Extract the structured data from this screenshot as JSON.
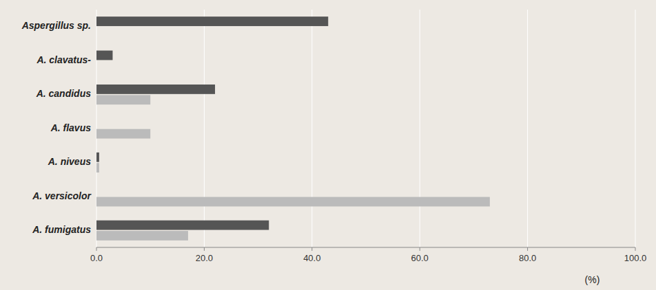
{
  "chart_data": {
    "type": "bar",
    "orientation": "horizontal",
    "categories": [
      "Aspergillus sp.",
      "A. clavatus-",
      "A. candidus",
      "A. flavus",
      "A. niveus",
      "A. versicolor",
      "A. fumigatus"
    ],
    "series": [
      {
        "color": "#555555",
        "values": [
          43.0,
          3.0,
          22.0,
          0.0,
          0.5,
          0.0,
          32.0
        ]
      },
      {
        "color": "#bbbbbb",
        "values": [
          0.0,
          0.0,
          10.0,
          10.0,
          0.5,
          73.0,
          17.0
        ]
      }
    ],
    "xlabel": "(%)",
    "xlim": [
      0,
      100
    ],
    "xticks": [
      {
        "value": 0,
        "label": "0.0"
      },
      {
        "value": 20,
        "label": "20.0"
      },
      {
        "value": 40,
        "label": "40.0"
      },
      {
        "value": 60,
        "label": "60.0"
      },
      {
        "value": 80,
        "label": "80.0"
      },
      {
        "value": 100,
        "label": "100.0"
      }
    ],
    "grid": true
  }
}
